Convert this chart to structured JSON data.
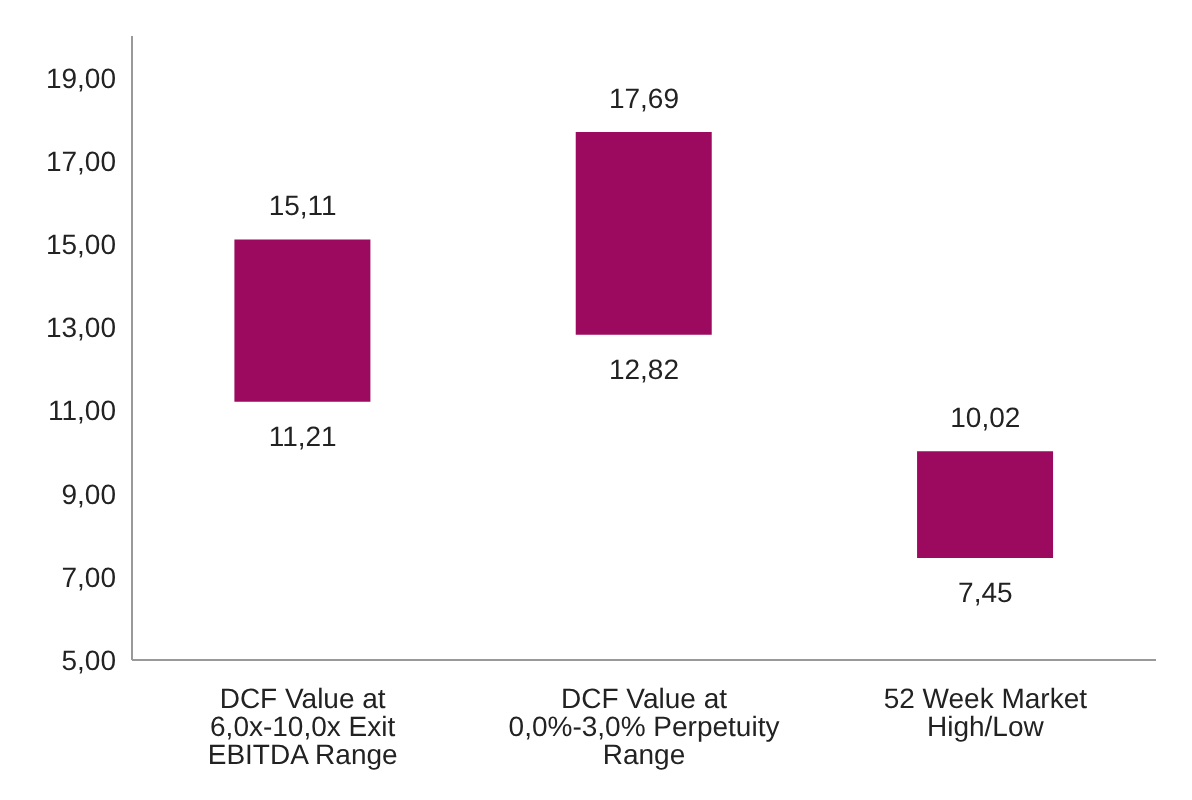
{
  "chart_data": {
    "type": "bar",
    "categories": [
      "DCF Value at 6,0x-10,0x Exit EBITDA Range",
      "DCF Value at 0,0%-3,0% Perpetuity Range",
      "52 Week Market High/Low"
    ],
    "base": [
      11.21,
      12.82,
      7.45
    ],
    "values": [
      3.9,
      4.87,
      2.57
    ],
    "color": "#9b0a5e",
    "ylim": [
      5,
      20
    ],
    "yticks": [
      {
        "value": 5,
        "label": "5,00"
      },
      {
        "value": 7,
        "label": "7,00"
      },
      {
        "value": 9,
        "label": "9,00"
      },
      {
        "value": 11,
        "label": "11,00"
      },
      {
        "value": 13,
        "label": "13,00"
      },
      {
        "value": 15,
        "label": "15,00"
      },
      {
        "value": 17,
        "label": "17,00"
      },
      {
        "value": 19,
        "label": "19,00"
      }
    ],
    "annotations": [
      {
        "text": "15,11",
        "x": "DCF Value at 6,0x-10,0x Exit EBITDA Range",
        "y": 15.11
      },
      {
        "text": "11,21",
        "x": "DCF Value at 6,0x-10,0x Exit EBITDA Range",
        "y": 11.21
      },
      {
        "text": "17,69",
        "x": "DCF Value at 0,0%-3,0% Perpetuity Range",
        "y": 17.69
      },
      {
        "text": "12,82",
        "x": "DCF Value at 0,0%-3,0% Perpetuity Range",
        "y": 12.82
      },
      {
        "text": "10,02",
        "x": "52 Week Market High/Low",
        "y": 10.02
      },
      {
        "text": "7,45",
        "x": "52 Week Market High/Low",
        "y": 7.45
      }
    ],
    "grid": false,
    "legend": false
  }
}
